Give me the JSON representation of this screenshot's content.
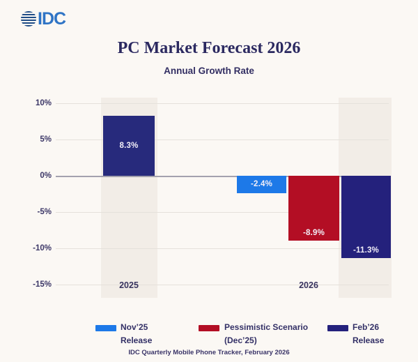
{
  "page": {
    "background": "#fbf8f4"
  },
  "logo": {
    "text": "IDC",
    "text_color": "#2f74c5",
    "globe_color": "#1f4c86"
  },
  "header": {
    "title": "PC Market Forecast 2026",
    "subtitle": "Annual Growth Rate"
  },
  "chart_data": {
    "type": "bar",
    "title": "PC Market Forecast 2026",
    "subtitle": "Annual Growth Rate",
    "unit": "%",
    "ylim": [
      -15,
      10
    ],
    "yticks": [
      10,
      5,
      0,
      -5,
      -10,
      -15
    ],
    "ytick_labels": [
      "10%",
      "5%",
      "0%",
      "-5%",
      "-10%",
      "-15%"
    ],
    "grid": true,
    "categories": [
      "2025",
      "2026"
    ],
    "bars": [
      {
        "group": "2025",
        "series": "Feb’26 Release",
        "value": 8.3,
        "label": "8.3%",
        "color": "#272a7c"
      },
      {
        "group": "2026",
        "series": "Nov’25 Release",
        "value": -2.4,
        "label": "-2.4%",
        "color": "#1d79e8"
      },
      {
        "group": "2026",
        "series": "Pessimistic Scenario (Dec’25)",
        "value": -8.9,
        "label": "-8.9%",
        "color": "#b30e24"
      },
      {
        "group": "2026",
        "series": "Feb’26 Release",
        "value": -11.3,
        "label": "-11.3%",
        "color": "#24217c"
      }
    ],
    "legend_position": "bottom",
    "legend": [
      {
        "line1": "Nov’25",
        "line2": "Release",
        "color": "#1d79e8"
      },
      {
        "line1": "Pessimistic Scenario",
        "line2": "(Dec’25)",
        "color": "#b30e24"
      },
      {
        "line1": "Feb’26",
        "line2": "Release",
        "color": "#24217c"
      }
    ]
  },
  "footer": {
    "source": "IDC Quarterly Mobile Phone Tracker, February 2026"
  }
}
